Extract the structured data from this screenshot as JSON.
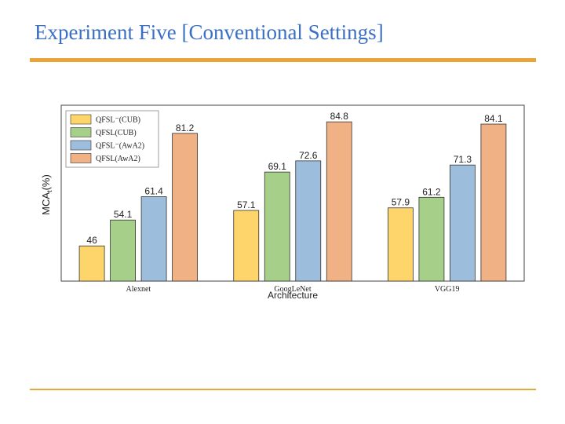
{
  "slide": {
    "title": "Experiment Five [Conventional Settings]",
    "accent_color": "#e9a43a"
  },
  "chart_data": {
    "type": "bar",
    "xlabel": "Architecture",
    "ylabel": "MCA",
    "ylabel_subscript": "t",
    "ylabel_suffix": "(%)",
    "categories": [
      "Alexnet",
      "GoogLeNet",
      "VGG19"
    ],
    "ylim": [
      35,
      90
    ],
    "grid": false,
    "legend_position": "top-left",
    "series": [
      {
        "name": "QFSL⁻(CUB)",
        "color": "#fdd56a",
        "values": [
          46,
          57.1,
          57.9
        ]
      },
      {
        "name": "QFSL(CUB)",
        "color": "#a6cf89",
        "values": [
          54.1,
          69.1,
          61.2
        ]
      },
      {
        "name": "QFSL⁻(AwA2)",
        "color": "#9dbddc",
        "values": [
          61.4,
          72.6,
          71.3
        ]
      },
      {
        "name": "QFSL(AwA2)",
        "color": "#f0b184",
        "values": [
          81.2,
          84.8,
          84.1
        ]
      }
    ],
    "data_labels": [
      [
        "46",
        "57.1",
        "57.9"
      ],
      [
        "54.1",
        "69.1",
        "61.2"
      ],
      [
        "61.4",
        "72.6",
        "71.3"
      ],
      [
        "81.2",
        "84.8",
        "84.1"
      ]
    ]
  }
}
